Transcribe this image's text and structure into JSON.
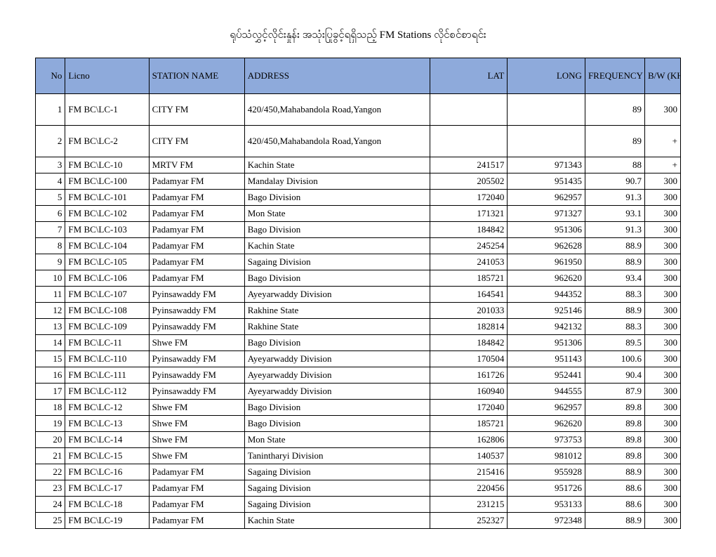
{
  "title": "ရုပ်သံလွှင့်လိုင်းနှုန်း အသုံးပြုခွင့်ရရှိသည့် FM Stations လိုင်စင်စာရင်း",
  "columns": [
    "No",
    "Licno",
    "STATION NAME",
    "ADDRESS",
    "LAT",
    "LONG",
    "FREQUENCY (Mhz)",
    "B/W (KHz)"
  ],
  "rows": [
    {
      "no": "1",
      "licno": "FM BC\\LC-1",
      "station": "CITY FM",
      "address": "420/450,Mahabandola Road,Yangon",
      "lat": "",
      "long": "",
      "freq": "89",
      "bw": "300",
      "tall": true
    },
    {
      "no": "2",
      "licno": "FM BC\\LC-2",
      "station": "CITY FM",
      "address": "420/450,Mahabandola Road,Yangon",
      "lat": "",
      "long": "",
      "freq": "89",
      "bw": "+",
      "tall": true
    },
    {
      "no": "3",
      "licno": "FM BC\\LC-10",
      "station": "MRTV FM",
      "address": "Kachin State",
      "lat": "241517",
      "long": "971343",
      "freq": "88",
      "bw": "+"
    },
    {
      "no": "4",
      "licno": "FM BC\\LC-100",
      "station": "Padamyar FM",
      "address": "Mandalay Division",
      "lat": "205502",
      "long": "951435",
      "freq": "90.7",
      "bw": "300"
    },
    {
      "no": "5",
      "licno": "FM BC\\LC-101",
      "station": "Padamyar FM",
      "address": "Bago Division",
      "lat": "172040",
      "long": "962957",
      "freq": "91.3",
      "bw": "300"
    },
    {
      "no": "6",
      "licno": "FM BC\\LC-102",
      "station": "Padamyar FM",
      "address": "Mon State",
      "lat": "171321",
      "long": "971327",
      "freq": "93.1",
      "bw": "300"
    },
    {
      "no": "7",
      "licno": "FM BC\\LC-103",
      "station": "Padamyar FM",
      "address": "Bago Division",
      "lat": "184842",
      "long": "951306",
      "freq": "91.3",
      "bw": "300"
    },
    {
      "no": "8",
      "licno": "FM BC\\LC-104",
      "station": "Padamyar FM",
      "address": "Kachin State",
      "lat": "245254",
      "long": "962628",
      "freq": "88.9",
      "bw": "300"
    },
    {
      "no": "9",
      "licno": "FM BC\\LC-105",
      "station": "Padamyar FM",
      "address": "Sagaing Division",
      "lat": "241053",
      "long": "961950",
      "freq": "88.9",
      "bw": "300"
    },
    {
      "no": "10",
      "licno": "FM BC\\LC-106",
      "station": "Padamyar FM",
      "address": "Bago Division",
      "lat": "185721",
      "long": "962620",
      "freq": "93.4",
      "bw": "300"
    },
    {
      "no": "11",
      "licno": "FM BC\\LC-107",
      "station": "Pyinsawaddy FM",
      "address": "Ayeyarwaddy Division",
      "lat": "164541",
      "long": "944352",
      "freq": "88.3",
      "bw": "300"
    },
    {
      "no": "12",
      "licno": "FM BC\\LC-108",
      "station": "Pyinsawaddy FM",
      "address": "Rakhine State",
      "lat": "201033",
      "long": "925146",
      "freq": "88.9",
      "bw": "300"
    },
    {
      "no": "13",
      "licno": "FM BC\\LC-109",
      "station": "Pyinsawaddy FM",
      "address": "Rakhine State",
      "lat": "182814",
      "long": "942132",
      "freq": "88.3",
      "bw": "300"
    },
    {
      "no": "14",
      "licno": "FM BC\\LC-11",
      "station": "Shwe FM",
      "address": "Bago Division",
      "lat": "184842",
      "long": "951306",
      "freq": "89.5",
      "bw": "300"
    },
    {
      "no": "15",
      "licno": "FM BC\\LC-110",
      "station": "Pyinsawaddy FM",
      "address": "Ayeyarwaddy Division",
      "lat": "170504",
      "long": "951143",
      "freq": "100.6",
      "bw": "300"
    },
    {
      "no": "16",
      "licno": "FM BC\\LC-111",
      "station": "Pyinsawaddy FM",
      "address": "Ayeyarwaddy Division",
      "lat": "161726",
      "long": "952441",
      "freq": "90.4",
      "bw": "300"
    },
    {
      "no": "17",
      "licno": "FM BC\\LC-112",
      "station": "Pyinsawaddy FM",
      "address": "Ayeyarwaddy Division",
      "lat": "160940",
      "long": "944555",
      "freq": "87.9",
      "bw": "300"
    },
    {
      "no": "18",
      "licno": "FM BC\\LC-12",
      "station": "Shwe FM",
      "address": "Bago Division",
      "lat": "172040",
      "long": "962957",
      "freq": "89.8",
      "bw": "300"
    },
    {
      "no": "19",
      "licno": "FM BC\\LC-13",
      "station": "Shwe FM",
      "address": "Bago Division",
      "lat": "185721",
      "long": "962620",
      "freq": "89.8",
      "bw": "300"
    },
    {
      "no": "20",
      "licno": "FM BC\\LC-14",
      "station": "Shwe FM",
      "address": "Mon State",
      "lat": "162806",
      "long": "973753",
      "freq": "89.8",
      "bw": "300"
    },
    {
      "no": "21",
      "licno": "FM BC\\LC-15",
      "station": "Shwe FM",
      "address": "Tanintharyi Division",
      "lat": "140537",
      "long": "981012",
      "freq": "89.8",
      "bw": "300"
    },
    {
      "no": "22",
      "licno": "FM BC\\LC-16",
      "station": "Padamyar FM",
      "address": "Sagaing Division",
      "lat": "215416",
      "long": "955928",
      "freq": "88.9",
      "bw": "300"
    },
    {
      "no": "23",
      "licno": "FM BC\\LC-17",
      "station": "Padamyar FM",
      "address": "Sagaing Division",
      "lat": "220456",
      "long": "951726",
      "freq": "88.6",
      "bw": "300"
    },
    {
      "no": "24",
      "licno": "FM BC\\LC-18",
      "station": "Padamyar FM",
      "address": "Sagaing Division",
      "lat": "231215",
      "long": "953133",
      "freq": "88.6",
      "bw": "300"
    },
    {
      "no": "25",
      "licno": "FM BC\\LC-19",
      "station": "Padamyar FM",
      "address": "Kachin State",
      "lat": "252327",
      "long": "972348",
      "freq": "88.9",
      "bw": "300"
    }
  ],
  "styling": {
    "header_bg": "#8eaadb",
    "border_color": "#000000",
    "font_family": "Times New Roman",
    "title_fontsize": 15,
    "cell_fontsize": 13
  }
}
